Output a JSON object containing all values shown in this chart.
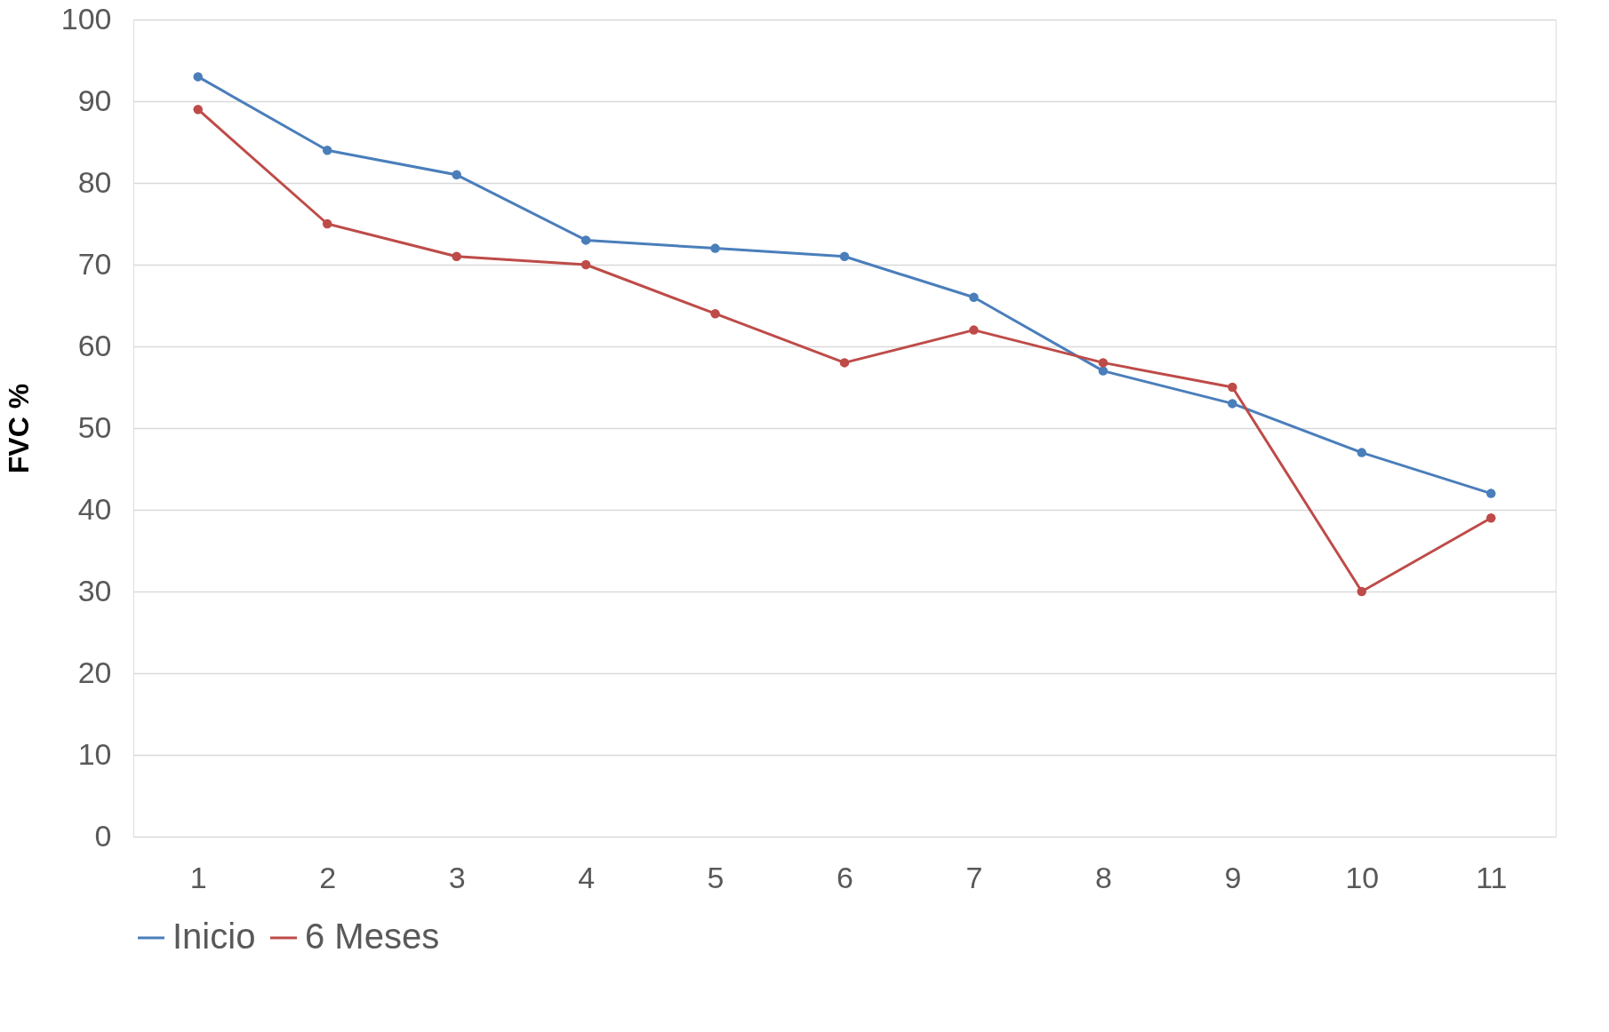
{
  "chart_data": {
    "type": "line",
    "ylabel": "FVC %",
    "categories": [
      "1",
      "2",
      "3",
      "4",
      "5",
      "6",
      "7",
      "8",
      "9",
      "10",
      "11"
    ],
    "series": [
      {
        "name": "Inicio",
        "color": "#4a7ebb",
        "values": [
          93,
          84,
          81,
          73,
          72,
          71,
          66,
          57,
          53,
          47,
          42
        ]
      },
      {
        "name": "6 Meses",
        "color": "#be4b48",
        "values": [
          89,
          75,
          71,
          70,
          64,
          58,
          62,
          58,
          55,
          30,
          39
        ]
      }
    ],
    "ylim": [
      0,
      100
    ],
    "yticks": [
      0,
      10,
      20,
      30,
      40,
      50,
      60,
      70,
      80,
      90,
      100
    ],
    "grid": "y",
    "legend": "bottom",
    "marker": "circle",
    "line_style": "solid"
  }
}
